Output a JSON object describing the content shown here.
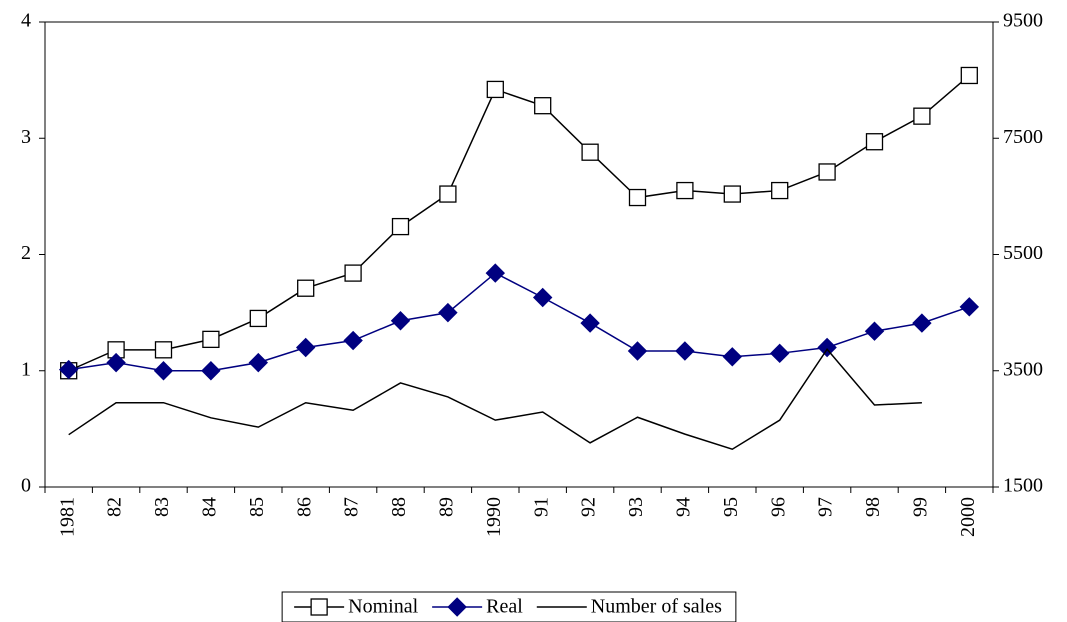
{
  "chart_data": {
    "type": "line",
    "categories": [
      "1981",
      "82",
      "83",
      "84",
      "85",
      "86",
      "87",
      "88",
      "89",
      "1990",
      "91",
      "92",
      "93",
      "94",
      "95",
      "96",
      "97",
      "98",
      "99",
      "2000"
    ],
    "ylim": [
      0,
      4
    ],
    "yticks": [
      0,
      1,
      2,
      3,
      4
    ],
    "y2lim": [
      1500,
      9500
    ],
    "y2ticks": [
      1500,
      3500,
      5500,
      7500,
      9500
    ],
    "series": [
      {
        "name": "Nominal",
        "color": "#000000",
        "marker": "square",
        "values": [
          1.0,
          1.18,
          1.18,
          1.27,
          1.45,
          1.71,
          1.84,
          2.24,
          2.52,
          3.42,
          3.28,
          2.88,
          2.49,
          2.55,
          2.52,
          2.55,
          2.71,
          2.97,
          3.19,
          3.54
        ]
      },
      {
        "name": "Real",
        "color": "#000080",
        "marker": "diamond",
        "values": [
          1.01,
          1.07,
          1.0,
          1.0,
          1.07,
          1.2,
          1.26,
          1.43,
          1.5,
          1.84,
          1.63,
          1.41,
          1.17,
          1.17,
          1.12,
          1.15,
          1.2,
          1.34,
          1.41,
          1.55
        ]
      },
      {
        "name": "Number of sales",
        "color": "#000000",
        "marker": "none",
        "axis": "y2",
        "values": [
          2400,
          2950,
          2950,
          2690,
          2530,
          2950,
          2820,
          3290,
          3050,
          2650,
          2790,
          2260,
          2700,
          2410,
          2150,
          2650,
          3870,
          2910,
          2950,
          null
        ]
      }
    ],
    "legend": "bottom"
  }
}
